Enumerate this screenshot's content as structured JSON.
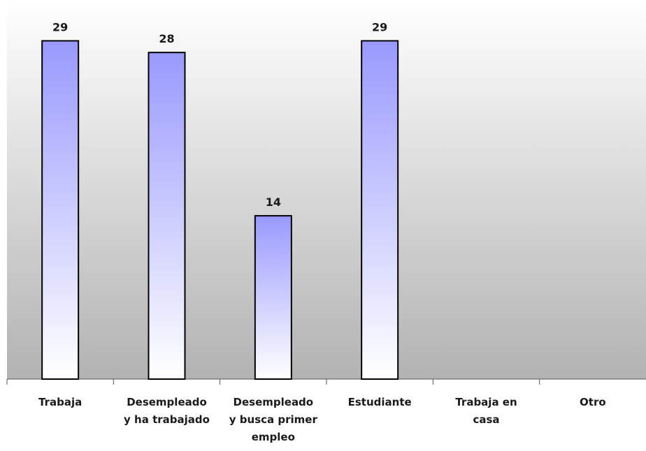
{
  "chart_data": {
    "type": "bar",
    "categories": [
      "Trabaja",
      "Desempleado\ny ha trabajado",
      "Desempleado\ny busca primer\nempleo",
      "Estudiante",
      "Trabaja en\ncasa",
      "Otro"
    ],
    "values": [
      29,
      28,
      14,
      29,
      null,
      null
    ],
    "ylim": [
      0,
      32.5
    ],
    "color": "#9999ff"
  }
}
